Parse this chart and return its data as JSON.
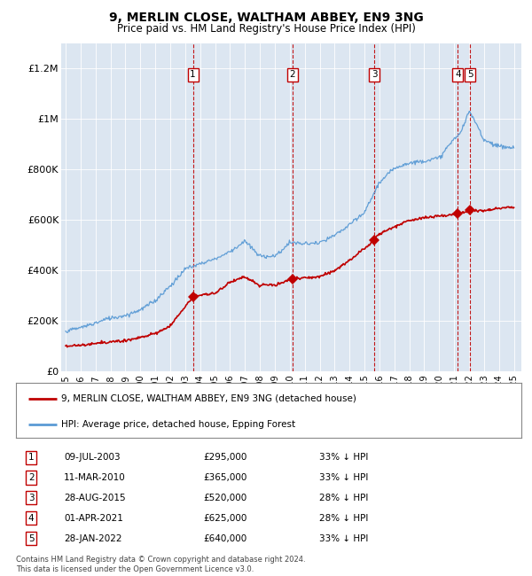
{
  "title": "9, MERLIN CLOSE, WALTHAM ABBEY, EN9 3NG",
  "subtitle": "Price paid vs. HM Land Registry's House Price Index (HPI)",
  "legend_line1": "9, MERLIN CLOSE, WALTHAM ABBEY, EN9 3NG (detached house)",
  "legend_line2": "HPI: Average price, detached house, Epping Forest",
  "footer": "Contains HM Land Registry data © Crown copyright and database right 2024.\nThis data is licensed under the Open Government Licence v3.0.",
  "transactions": [
    {
      "num": 1,
      "date": "09-JUL-2003",
      "date_x": 2003.52,
      "price": 295000,
      "hpi_pct": "33% ↓ HPI"
    },
    {
      "num": 2,
      "date": "11-MAR-2010",
      "date_x": 2010.19,
      "price": 365000,
      "hpi_pct": "33% ↓ HPI"
    },
    {
      "num": 3,
      "date": "28-AUG-2015",
      "date_x": 2015.66,
      "price": 520000,
      "hpi_pct": "28% ↓ HPI"
    },
    {
      "num": 4,
      "date": "01-APR-2021",
      "date_x": 2021.25,
      "price": 625000,
      "hpi_pct": "28% ↓ HPI"
    },
    {
      "num": 5,
      "date": "28-JAN-2022",
      "date_x": 2022.08,
      "price": 640000,
      "hpi_pct": "33% ↓ HPI"
    }
  ],
  "hpi_color": "#5b9bd5",
  "price_color": "#c00000",
  "dashed_color": "#c00000",
  "bg_color": "#dce6f1",
  "ylim": [
    0,
    1300000
  ],
  "xlim_start": 1994.7,
  "xlim_end": 2025.5,
  "yticks": [
    0,
    200000,
    400000,
    600000,
    800000,
    1000000,
    1200000
  ],
  "ytick_labels": [
    "£0",
    "£200K",
    "£400K",
    "£600K",
    "£800K",
    "£1M",
    "£1.2M"
  ]
}
